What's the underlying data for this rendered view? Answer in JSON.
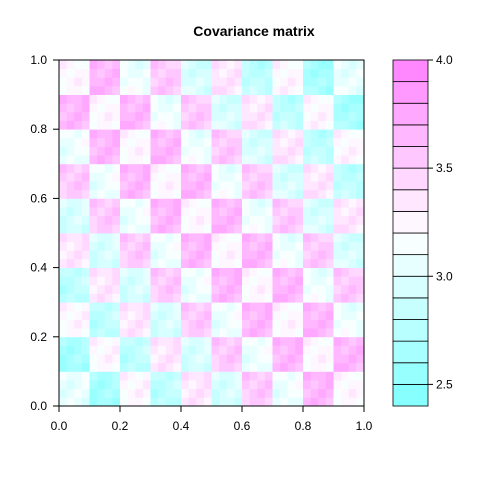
{
  "chart_data": {
    "type": "heatmap",
    "title": "Covariance matrix",
    "xlim": [
      0.0,
      1.0
    ],
    "ylim": [
      0.0,
      1.0
    ],
    "x_ticks": [
      "0.0",
      "0.2",
      "0.4",
      "0.6",
      "0.8",
      "1.0"
    ],
    "y_ticks": [
      "0.0",
      "0.2",
      "0.4",
      "0.6",
      "0.8",
      "1.0"
    ],
    "colorbar": {
      "range": [
        2.4,
        4.0
      ],
      "ticks": [
        "2.5",
        "3.0",
        "3.5",
        "4.0"
      ],
      "tick_values": [
        2.5,
        3.0,
        3.5,
        4.0
      ],
      "n_levels": 16,
      "low_color": "#80ffff",
      "high_color": "#ff80ff"
    },
    "cell_block": 0.1,
    "value_model": "3.2 + 0.3*d(block checker) + 0.4*(1 - |x + y - 1|) + 0.1*sin(diagonal stripes)",
    "grid": false
  }
}
